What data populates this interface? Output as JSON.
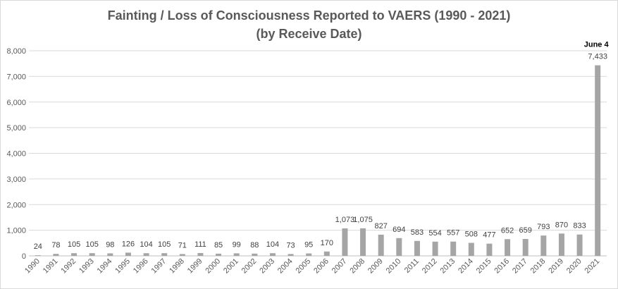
{
  "chart_data": {
    "type": "bar",
    "title": "Fainting / Loss of Consciousness Reported to VAERS (1990 - 2021)",
    "subtitle": "(by Receive Date)",
    "xlabel": "",
    "ylabel": "",
    "ylim": [
      0,
      8000
    ],
    "yticks": [
      "0",
      "1,000",
      "2,000",
      "3,000",
      "4,000",
      "5,000",
      "6,000",
      "7,000",
      "8,000"
    ],
    "grid": true,
    "categories": [
      "1990",
      "1991",
      "1992",
      "1993",
      "1994",
      "1995",
      "1996",
      "1997",
      "1998",
      "1999",
      "2000",
      "2001",
      "2002",
      "2003",
      "2004",
      "2005",
      "2006",
      "2007",
      "2008",
      "2009",
      "2010",
      "2011",
      "2012",
      "2013",
      "2014",
      "2015",
      "2016",
      "2017",
      "2018",
      "2019",
      "2020",
      "2021"
    ],
    "values": [
      24,
      78,
      105,
      105,
      98,
      126,
      104,
      105,
      71,
      111,
      85,
      99,
      88,
      104,
      73,
      95,
      170,
      1073,
      1075,
      827,
      694,
      583,
      554,
      557,
      508,
      477,
      652,
      659,
      793,
      870,
      833,
      7433
    ],
    "data_labels": [
      "24",
      "78",
      "105",
      "105",
      "98",
      "126",
      "104",
      "105",
      "71",
      "111",
      "85",
      "99",
      "88",
      "104",
      "73",
      "95",
      "170",
      "1,073",
      "1,075",
      "827",
      "694",
      "583",
      "554",
      "557",
      "508",
      "477",
      "652",
      "659",
      "793",
      "870",
      "833",
      "7,433"
    ],
    "annotation": "June 4",
    "bar_color": "#a5a5a5"
  }
}
